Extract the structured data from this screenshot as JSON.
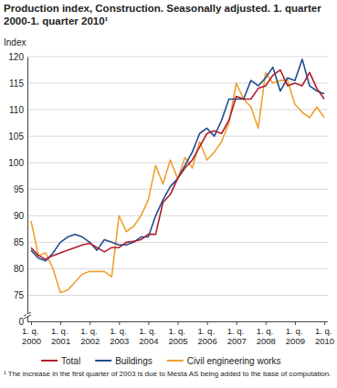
{
  "chart_data": {
    "type": "line",
    "title": "Production index, Construction. Seasonally adjusted. 1. quarter 2000-1. quarter 2010¹",
    "y_label": "Index",
    "footnote": "¹ The increase in the first quarter of 2003 is due to Mesta AS being added to the base of computation.",
    "categories": [
      "1. q. 2000",
      null,
      null,
      null,
      "1. q. 2001",
      null,
      null,
      null,
      "1. q. 2002",
      null,
      null,
      null,
      "1. q. 2003",
      null,
      null,
      null,
      "1. q. 2004",
      null,
      null,
      null,
      "1. q. 2005",
      null,
      null,
      null,
      "1. q. 2006",
      null,
      null,
      null,
      "1. q. 2007",
      null,
      null,
      null,
      "1. q. 2008",
      null,
      null,
      null,
      "1. q. 2009",
      null,
      null,
      null,
      "1. q. 2010"
    ],
    "series": [
      {
        "name": "Total",
        "color": "#b01c2e",
        "values": [
          84,
          82.5,
          81.8,
          82.5,
          83,
          83.5,
          84,
          84.5,
          84.8,
          84,
          83.2,
          84,
          84,
          85,
          85.2,
          85.5,
          86.5,
          86.5,
          92.5,
          94,
          97,
          99,
          100.5,
          103,
          105.5,
          106,
          105.5,
          108,
          112.5,
          112,
          112,
          114,
          114.5,
          116.5,
          117.5,
          114.5,
          115,
          114.5,
          117,
          114,
          112
        ]
      },
      {
        "name": "Buildings",
        "color": "#1f4e8c",
        "values": [
          83.5,
          82,
          81.5,
          83,
          85,
          86,
          86.5,
          86,
          85,
          83.5,
          85.5,
          85,
          84.5,
          84.5,
          85,
          86,
          86,
          90,
          93,
          95.5,
          97,
          99.5,
          102,
          105.5,
          106.5,
          105,
          108,
          112,
          112,
          112,
          115.5,
          114.5,
          116,
          118,
          113.5,
          116,
          115.5,
          119.5,
          114.5,
          113.5,
          113
        ]
      },
      {
        "name": "Civil engineering works",
        "color": "#f0a030",
        "values": [
          89,
          82.5,
          83,
          80,
          75.5,
          76,
          77.5,
          79,
          79.5,
          79.5,
          79.5,
          78.5,
          90,
          87,
          88,
          90,
          93,
          99.5,
          96,
          100.5,
          97,
          101,
          99,
          104,
          100.5,
          102,
          104,
          107.5,
          115,
          112,
          110.5,
          106.5,
          117,
          115,
          115.5,
          115.5,
          111,
          109.5,
          108.5,
          110.5,
          108.5
        ]
      }
    ],
    "ylim": [
      0,
      120
    ],
    "yticks": [
      0,
      75,
      80,
      85,
      90,
      95,
      100,
      105,
      110,
      115,
      120
    ],
    "grid": true,
    "legend": "bottom"
  }
}
